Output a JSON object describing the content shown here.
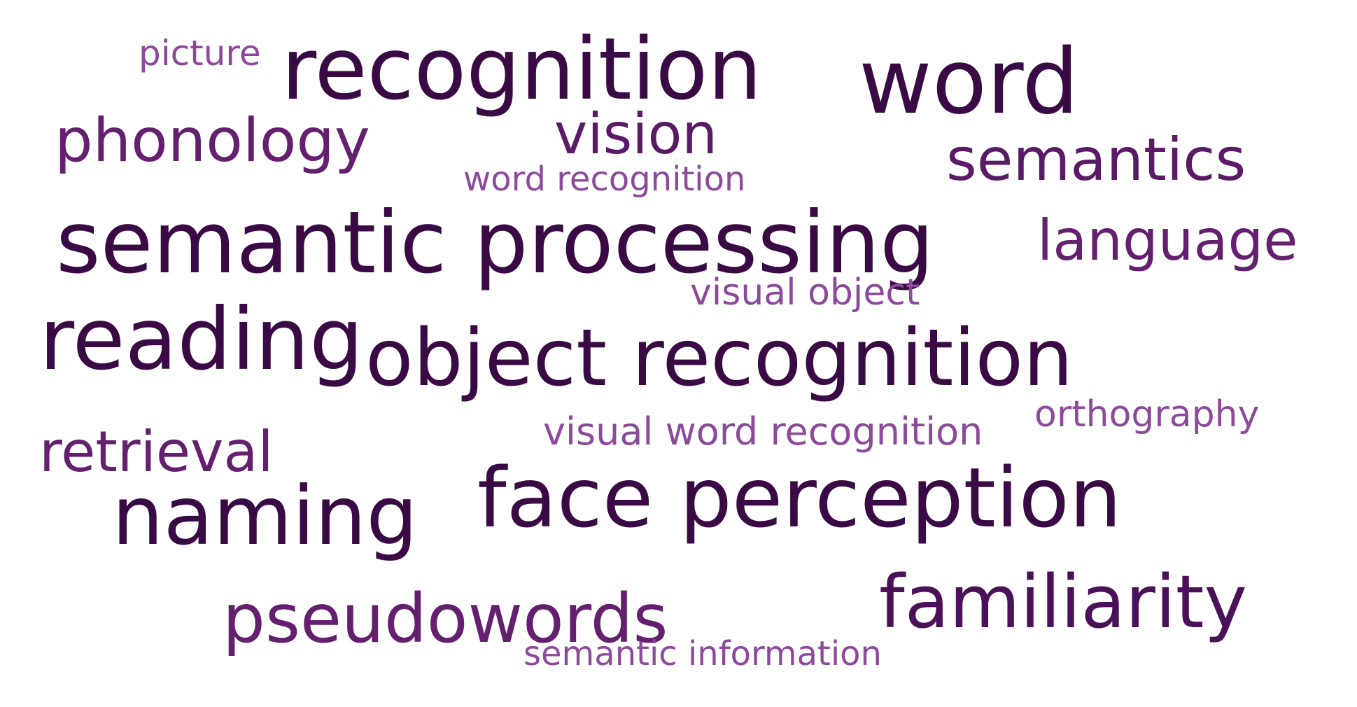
{
  "word_cloud": {
    "colors": {
      "darkest": "#3a0a45",
      "dark": "#4a1058",
      "medium": "#64206f",
      "light": "#7a3489",
      "lightest": "#8c4a9a"
    },
    "words": [
      {
        "id": "picture",
        "text": "picture",
        "weight": 1,
        "color": "#8c4a9a"
      },
      {
        "id": "recognition",
        "text": "recognition",
        "weight": 5,
        "color": "#3a0a45"
      },
      {
        "id": "word",
        "text": "word",
        "weight": 5,
        "color": "#3a0a45"
      },
      {
        "id": "phonology",
        "text": "phonology",
        "weight": 3,
        "color": "#64206f"
      },
      {
        "id": "vision",
        "text": "vision",
        "weight": 3,
        "color": "#5a1a66"
      },
      {
        "id": "semantics",
        "text": "semantics",
        "weight": 3,
        "color": "#5a1a66"
      },
      {
        "id": "word-recognition",
        "text": "word recognition",
        "weight": 1,
        "color": "#8c4a9a"
      },
      {
        "id": "semantic-processing",
        "text": "semantic processing",
        "weight": 5,
        "color": "#3a0a45"
      },
      {
        "id": "language",
        "text": "language",
        "weight": 3,
        "color": "#64206f"
      },
      {
        "id": "visual-object",
        "text": "visual object",
        "weight": 1,
        "color": "#8c4a9a"
      },
      {
        "id": "reading",
        "text": "reading",
        "weight": 5,
        "color": "#3a0a45"
      },
      {
        "id": "object-recognition",
        "text": "object recognition",
        "weight": 5,
        "color": "#3a0a45"
      },
      {
        "id": "orthography",
        "text": "orthography",
        "weight": 1,
        "color": "#8c4a9a"
      },
      {
        "id": "visual-word-recognition",
        "text": "visual word recognition",
        "weight": 1,
        "color": "#8c4a9a"
      },
      {
        "id": "retrieval",
        "text": "retrieval",
        "weight": 3,
        "color": "#64206f"
      },
      {
        "id": "naming",
        "text": "naming",
        "weight": 5,
        "color": "#3a0a45"
      },
      {
        "id": "face-perception",
        "text": "face perception",
        "weight": 5,
        "color": "#3a0a45"
      },
      {
        "id": "familiarity",
        "text": "familiarity",
        "weight": 4,
        "color": "#4a1058"
      },
      {
        "id": "pseudowords",
        "text": "pseudowords",
        "weight": 3,
        "color": "#64206f"
      },
      {
        "id": "semantic-information",
        "text": "semantic information",
        "weight": 1,
        "color": "#8c4a9a"
      }
    ]
  }
}
